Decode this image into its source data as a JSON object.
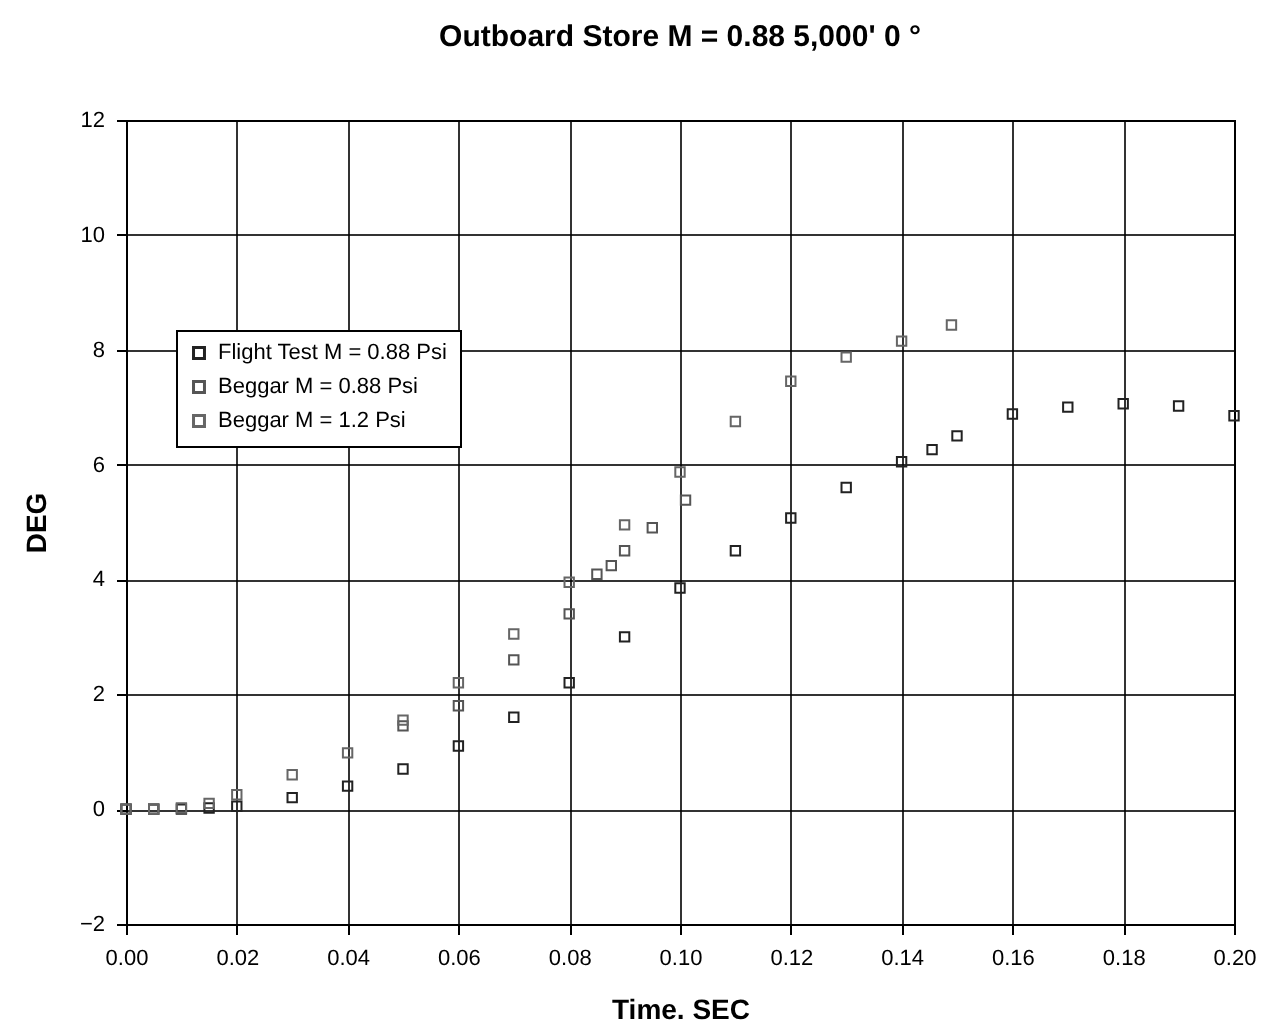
{
  "chart_data": {
    "type": "scatter",
    "title": "Outboard Store M = 0.88 5,000' 0 °",
    "xlabel": "Time.  SEC",
    "ylabel": "DEG",
    "xlim": [
      0,
      0.2
    ],
    "xticks": [
      {
        "value": 0,
        "label": "0.00"
      },
      0.02,
      0.04,
      0.06,
      0.08,
      {
        "value": 0.1,
        "label": "0.10"
      },
      0.12,
      0.14,
      0.16,
      0.18,
      {
        "value": 0.2,
        "label": "0.20"
      }
    ],
    "ylim": [
      -2,
      12
    ],
    "yticks": [
      -2,
      0,
      2,
      4,
      6,
      8,
      10,
      12
    ],
    "grid": true,
    "legend": "top left",
    "marker": "square",
    "series": [
      {
        "name": "Flight Test M = 0.88 Psi",
        "color": "#222222",
        "x": [
          0,
          0.005,
          0.01,
          0.015,
          0.02,
          0.03,
          0.04,
          0.05,
          0.06,
          0.07,
          0.08,
          0.09,
          0.1,
          0.11,
          0.12,
          0.13,
          0.14,
          0.1455,
          0.15,
          0.16,
          0.17,
          0.18,
          0.19,
          0.2
        ],
        "values": [
          0,
          0,
          0,
          0.02,
          0.05,
          0.2,
          0.4,
          0.7,
          1.1,
          1.6,
          2.2,
          3.0,
          3.85,
          4.5,
          5.07,
          5.6,
          6.05,
          6.26,
          6.5,
          6.88,
          7.0,
          7.06,
          7.02,
          6.85
        ]
      },
      {
        "name": "Beggar M = 0.88 Psi",
        "color": "#555555",
        "x": [
          0,
          0.005,
          0.05,
          0.06,
          0.07,
          0.08,
          0.085,
          0.0876,
          0.09,
          0.095,
          0.101
        ],
        "values": [
          0,
          0,
          1.45,
          1.8,
          2.6,
          3.4,
          4.09,
          4.24,
          4.5,
          4.9,
          5.38
        ]
      },
      {
        "name": "Beggar M = 1.2 Psi",
        "color": "#666666",
        "x": [
          0,
          0.005,
          0.01,
          0.015,
          0.02,
          0.03,
          0.04,
          0.05,
          0.06,
          0.07,
          0.08,
          0.09,
          0.1,
          0.11,
          0.12,
          0.13,
          0.14,
          0.149
        ],
        "values": [
          0,
          0,
          0.02,
          0.1,
          0.25,
          0.6,
          0.98,
          1.55,
          2.2,
          3.05,
          3.95,
          4.95,
          5.87,
          6.75,
          7.45,
          7.87,
          8.15,
          8.43
        ]
      }
    ]
  }
}
